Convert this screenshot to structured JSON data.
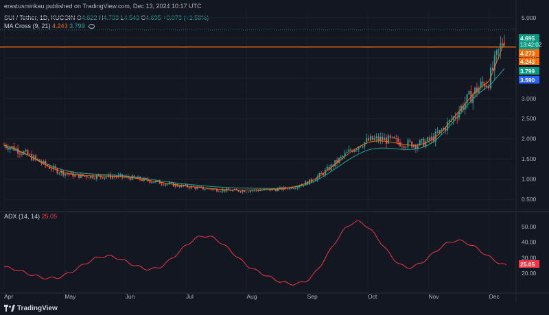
{
  "header": {
    "publish": "erastusmirikau published on TradingView.com, Dec 13, 2024 10:17 UTC",
    "symbol": "SUI / Tether, 1D, KUCOIN",
    "ohlc": {
      "o_label": "O",
      "o": "4.622",
      "h_label": "H",
      "h": "4.733",
      "l_label": "L",
      "l": "4.543",
      "c_label": "C",
      "c": "4.695",
      "change": "+0.073 (+1.58%)"
    },
    "ma_label": "MA Cross (9, 21)",
    "ma_fast": "4.243",
    "ma_slow": "3.799",
    "adx_label": "ADX (14, 14)",
    "adx_value": "25.05"
  },
  "price_axis": {
    "ticks": [
      "5.000",
      "4.500",
      "4.000",
      "3.500",
      "3.000",
      "2.500",
      "2.000",
      "1.500",
      "1.000",
      "0.500"
    ],
    "tags": {
      "price": "4.695",
      "countdown": "13:42:02",
      "level": "4.273",
      "fast": "4.243",
      "slow": "3.799",
      "blue": "3.590"
    }
  },
  "adx_axis": {
    "ticks": [
      "50.00",
      "40.00",
      "30.00",
      "20.00"
    ],
    "tag": "25.05"
  },
  "time_axis": {
    "labels": [
      "Apr",
      "May",
      "Jun",
      "Jul",
      "Aug",
      "Sep",
      "Oct",
      "Nov",
      "Dec"
    ]
  },
  "colors": {
    "background": "#131722",
    "up": "#26a69a",
    "down": "#ef5350",
    "ma_fast": "#ff6d00",
    "ma_slow": "#26a69a",
    "level": "#ff6d00",
    "blue_line": "#2962ff",
    "adx": "#f23645"
  },
  "footer": {
    "brand": "TradingView"
  },
  "chart_data": {
    "type": "line",
    "title": "SUI / Tether, 1D, KUCOIN",
    "x": [
      "Apr",
      "May",
      "Jun",
      "Jul",
      "Aug",
      "Sep",
      "Oct",
      "Nov",
      "Dec"
    ],
    "series": [
      {
        "name": "",
        "values": [
          1.85,
          1.15,
          1.05,
          0.82,
          0.72,
          0.92,
          1.95,
          1.95,
          3.45
        ]
      },
      {
        "name": "",
        "values": [
          1.8,
          1.22,
          1.08,
          0.88,
          0.78,
          0.88,
          1.72,
          1.85,
          3.3
        ]
      }
    ],
    "ylim": [
      0.3,
      5.2
    ],
    "horizontal_level": 4.273,
    "last_close": 4.695,
    "adx": {
      "values": [
        24,
        17,
        31,
        23,
        44,
        22,
        15,
        53,
        24,
        41,
        25
      ],
      "ylim": [
        10,
        57
      ]
    }
  }
}
